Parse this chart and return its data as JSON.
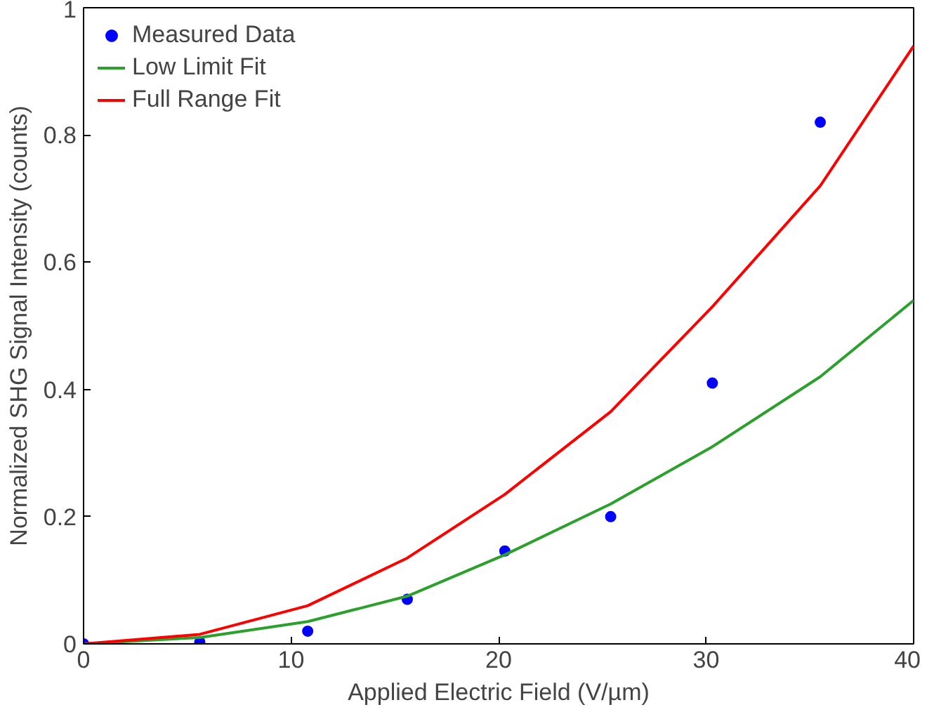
{
  "chart_data": {
    "type": "line",
    "xlabel": "Applied Electric Field (V/µm)",
    "ylabel": "Normalized SHG Signal Intensity (counts)",
    "xlim": [
      0,
      40
    ],
    "ylim": [
      0,
      1
    ],
    "xticks": [
      0,
      10,
      20,
      30,
      40
    ],
    "yticks": [
      0,
      0.2,
      0.4,
      0.6,
      0.8,
      1
    ],
    "grid": false,
    "legend": "top left",
    "series": [
      {
        "name": "Measured Data",
        "type": "scatter",
        "marker": "circle",
        "color": "#0000ff",
        "x": [
          0,
          5.6,
          10.8,
          15.6,
          20.3,
          25.4,
          30.3,
          35.5
        ],
        "values": [
          0,
          0.003,
          0.02,
          0.07,
          0.146,
          0.2,
          0.41,
          0.82
        ]
      },
      {
        "name": "Low Limit Fit",
        "color": "#2ca02c",
        "x": [
          0,
          5.6,
          10.8,
          15.6,
          20.3,
          25.4,
          30.3,
          35.5,
          40
        ],
        "values": [
          0,
          0.01,
          0.035,
          0.075,
          0.14,
          0.22,
          0.31,
          0.42,
          0.54
        ]
      },
      {
        "name": "Full Range Fit",
        "color": "#ff0000",
        "x": [
          0,
          5.6,
          10.8,
          15.6,
          20.3,
          25.4,
          30.3,
          35.5,
          40
        ],
        "values": [
          0,
          0.015,
          0.06,
          0.135,
          0.235,
          0.365,
          0.53,
          0.72,
          0.94
        ]
      }
    ]
  }
}
